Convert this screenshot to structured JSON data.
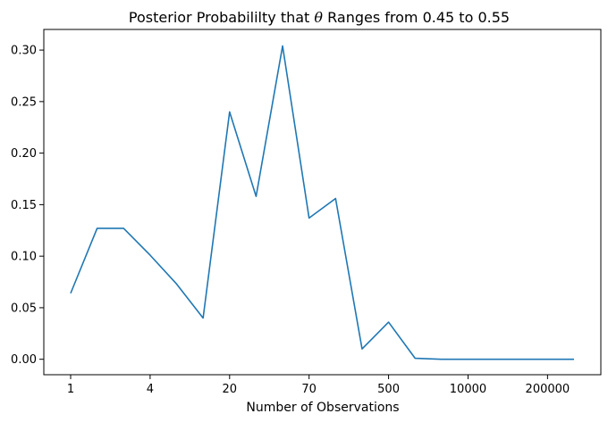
{
  "chart_data": {
    "type": "line",
    "title_prefix": "Posterior Probabililty that ",
    "title_symbol": "θ",
    "title_suffix": " Ranges from 0.45 to 0.55",
    "xlabel": "Number of Observations",
    "ylabel": "",
    "x_tick_labels": [
      "1",
      "4",
      "20",
      "70",
      "500",
      "10000",
      "200000"
    ],
    "y_tick_labels": [
      "0.00",
      "0.05",
      "0.10",
      "0.15",
      "0.20",
      "0.25",
      "0.30"
    ],
    "y_ticks": [
      0.0,
      0.05,
      0.1,
      0.15,
      0.2,
      0.25,
      0.3
    ],
    "ylim": [
      -0.015,
      0.32
    ],
    "grid": false,
    "series": [
      {
        "color": "#1f77b4",
        "values": [
          0.064,
          0.127,
          0.127,
          0.101,
          0.073,
          0.04,
          0.24,
          0.158,
          0.304,
          0.137,
          0.156,
          0.01,
          0.036,
          0.001,
          0.0,
          0.0,
          0.0,
          0.0,
          0.0,
          0.0
        ]
      }
    ]
  }
}
